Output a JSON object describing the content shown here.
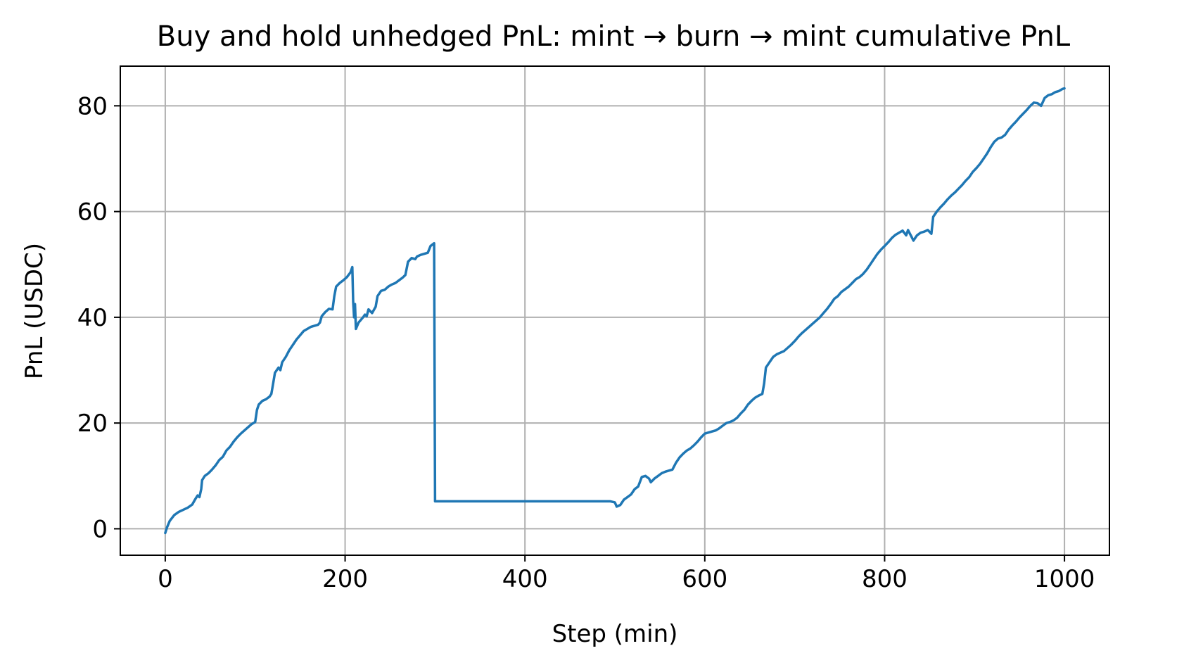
{
  "chart_data": {
    "type": "line",
    "title": "Buy and hold unhedged PnL: mint → burn → mint cumulative PnL",
    "xlabel": "Step (min)",
    "ylabel": "PnL (USDC)",
    "xlim": [
      -50,
      1050
    ],
    "ylim": [
      -5,
      87.5
    ],
    "xticks": [
      0,
      200,
      400,
      600,
      800,
      1000
    ],
    "yticks": [
      0,
      20,
      40,
      60,
      80
    ],
    "grid": true,
    "series": [
      {
        "color": "#1f77b4",
        "points": [
          [
            0,
            -0.8
          ],
          [
            2,
            0.3
          ],
          [
            5,
            1.5
          ],
          [
            10,
            2.6
          ],
          [
            15,
            3.2
          ],
          [
            20,
            3.6
          ],
          [
            25,
            4.0
          ],
          [
            30,
            4.6
          ],
          [
            33,
            5.5
          ],
          [
            36,
            6.3
          ],
          [
            38,
            6.0
          ],
          [
            40,
            7.5
          ],
          [
            41,
            9.2
          ],
          [
            44,
            10.0
          ],
          [
            48,
            10.5
          ],
          [
            52,
            11.2
          ],
          [
            56,
            12.0
          ],
          [
            60,
            13.0
          ],
          [
            64,
            13.6
          ],
          [
            68,
            14.8
          ],
          [
            72,
            15.5
          ],
          [
            76,
            16.5
          ],
          [
            80,
            17.3
          ],
          [
            84,
            18.0
          ],
          [
            88,
            18.6
          ],
          [
            92,
            19.2
          ],
          [
            96,
            19.8
          ],
          [
            100,
            20.2
          ],
          [
            102,
            22.5
          ],
          [
            104,
            23.5
          ],
          [
            108,
            24.2
          ],
          [
            112,
            24.5
          ],
          [
            116,
            25.0
          ],
          [
            118,
            25.5
          ],
          [
            120,
            27.5
          ],
          [
            122,
            29.5
          ],
          [
            126,
            30.5
          ],
          [
            128,
            30.0
          ],
          [
            130,
            31.5
          ],
          [
            134,
            32.5
          ],
          [
            138,
            33.8
          ],
          [
            142,
            34.8
          ],
          [
            146,
            35.8
          ],
          [
            150,
            36.6
          ],
          [
            154,
            37.4
          ],
          [
            158,
            37.8
          ],
          [
            162,
            38.2
          ],
          [
            166,
            38.4
          ],
          [
            170,
            38.6
          ],
          [
            172,
            39.0
          ],
          [
            174,
            40.2
          ],
          [
            178,
            41.0
          ],
          [
            182,
            41.6
          ],
          [
            186,
            41.5
          ],
          [
            188,
            44.0
          ],
          [
            190,
            45.8
          ],
          [
            194,
            46.5
          ],
          [
            198,
            47.0
          ],
          [
            202,
            47.6
          ],
          [
            206,
            48.5
          ],
          [
            208,
            49.5
          ],
          [
            209,
            43.0
          ],
          [
            210,
            40.0
          ],
          [
            211,
            42.5
          ],
          [
            212,
            37.8
          ],
          [
            215,
            39.0
          ],
          [
            220,
            40.0
          ],
          [
            222,
            40.5
          ],
          [
            224,
            40.2
          ],
          [
            226,
            41.5
          ],
          [
            230,
            40.8
          ],
          [
            234,
            42.0
          ],
          [
            236,
            44.0
          ],
          [
            240,
            45.0
          ],
          [
            244,
            45.2
          ],
          [
            248,
            45.8
          ],
          [
            252,
            46.2
          ],
          [
            256,
            46.5
          ],
          [
            260,
            47.0
          ],
          [
            264,
            47.5
          ],
          [
            267,
            48.0
          ],
          [
            270,
            50.5
          ],
          [
            274,
            51.2
          ],
          [
            278,
            51.0
          ],
          [
            280,
            51.5
          ],
          [
            284,
            51.8
          ],
          [
            288,
            52.0
          ],
          [
            292,
            52.2
          ],
          [
            295,
            53.5
          ],
          [
            299,
            54.0
          ],
          [
            300,
            5.2
          ],
          [
            350,
            5.2
          ],
          [
            400,
            5.2
          ],
          [
            450,
            5.2
          ],
          [
            495,
            5.2
          ],
          [
            500,
            5.0
          ],
          [
            502,
            4.2
          ],
          [
            506,
            4.5
          ],
          [
            510,
            5.5
          ],
          [
            514,
            6.0
          ],
          [
            518,
            6.5
          ],
          [
            522,
            7.5
          ],
          [
            526,
            8.0
          ],
          [
            530,
            9.8
          ],
          [
            534,
            10.0
          ],
          [
            538,
            9.5
          ],
          [
            540,
            8.8
          ],
          [
            544,
            9.5
          ],
          [
            548,
            10.0
          ],
          [
            552,
            10.5
          ],
          [
            556,
            10.8
          ],
          [
            560,
            11.0
          ],
          [
            564,
            11.2
          ],
          [
            568,
            12.5
          ],
          [
            572,
            13.5
          ],
          [
            576,
            14.2
          ],
          [
            580,
            14.8
          ],
          [
            584,
            15.2
          ],
          [
            588,
            15.8
          ],
          [
            592,
            16.5
          ],
          [
            596,
            17.3
          ],
          [
            600,
            18.0
          ],
          [
            604,
            18.2
          ],
          [
            608,
            18.4
          ],
          [
            612,
            18.6
          ],
          [
            616,
            19.0
          ],
          [
            620,
            19.5
          ],
          [
            624,
            20.0
          ],
          [
            628,
            20.2
          ],
          [
            632,
            20.5
          ],
          [
            636,
            21.0
          ],
          [
            640,
            21.8
          ],
          [
            644,
            22.5
          ],
          [
            648,
            23.5
          ],
          [
            652,
            24.2
          ],
          [
            656,
            24.8
          ],
          [
            660,
            25.2
          ],
          [
            664,
            25.5
          ],
          [
            666,
            27.5
          ],
          [
            668,
            30.5
          ],
          [
            672,
            31.5
          ],
          [
            676,
            32.5
          ],
          [
            680,
            33.0
          ],
          [
            684,
            33.3
          ],
          [
            688,
            33.6
          ],
          [
            692,
            34.2
          ],
          [
            696,
            34.8
          ],
          [
            700,
            35.5
          ],
          [
            704,
            36.3
          ],
          [
            708,
            37.0
          ],
          [
            712,
            37.6
          ],
          [
            716,
            38.2
          ],
          [
            720,
            38.8
          ],
          [
            724,
            39.4
          ],
          [
            728,
            40.0
          ],
          [
            732,
            40.8
          ],
          [
            736,
            41.6
          ],
          [
            740,
            42.5
          ],
          [
            744,
            43.5
          ],
          [
            748,
            44.0
          ],
          [
            752,
            44.8
          ],
          [
            756,
            45.3
          ],
          [
            760,
            45.8
          ],
          [
            764,
            46.5
          ],
          [
            768,
            47.2
          ],
          [
            772,
            47.6
          ],
          [
            776,
            48.2
          ],
          [
            780,
            49.0
          ],
          [
            784,
            50.0
          ],
          [
            788,
            51.0
          ],
          [
            792,
            52.0
          ],
          [
            796,
            52.8
          ],
          [
            800,
            53.5
          ],
          [
            804,
            54.2
          ],
          [
            808,
            55.0
          ],
          [
            812,
            55.6
          ],
          [
            816,
            56.0
          ],
          [
            820,
            56.4
          ],
          [
            824,
            55.5
          ],
          [
            826,
            56.5
          ],
          [
            830,
            55.2
          ],
          [
            832,
            54.5
          ],
          [
            836,
            55.5
          ],
          [
            840,
            56.0
          ],
          [
            844,
            56.2
          ],
          [
            848,
            56.5
          ],
          [
            852,
            55.8
          ],
          [
            854,
            59.0
          ],
          [
            858,
            60.0
          ],
          [
            862,
            60.8
          ],
          [
            866,
            61.5
          ],
          [
            870,
            62.3
          ],
          [
            874,
            63.0
          ],
          [
            878,
            63.6
          ],
          [
            882,
            64.3
          ],
          [
            886,
            65.0
          ],
          [
            890,
            65.8
          ],
          [
            894,
            66.5
          ],
          [
            898,
            67.5
          ],
          [
            902,
            68.2
          ],
          [
            906,
            69.0
          ],
          [
            910,
            70.0
          ],
          [
            914,
            71.0
          ],
          [
            918,
            72.2
          ],
          [
            922,
            73.2
          ],
          [
            926,
            73.8
          ],
          [
            930,
            74.0
          ],
          [
            934,
            74.5
          ],
          [
            938,
            75.5
          ],
          [
            942,
            76.3
          ],
          [
            946,
            77.0
          ],
          [
            950,
            77.8
          ],
          [
            954,
            78.5
          ],
          [
            958,
            79.2
          ],
          [
            962,
            80.0
          ],
          [
            966,
            80.6
          ],
          [
            970,
            80.5
          ],
          [
            974,
            80.0
          ],
          [
            978,
            81.5
          ],
          [
            982,
            82.0
          ],
          [
            986,
            82.2
          ],
          [
            990,
            82.6
          ],
          [
            994,
            82.8
          ],
          [
            998,
            83.2
          ],
          [
            1000,
            83.3
          ]
        ]
      }
    ]
  }
}
